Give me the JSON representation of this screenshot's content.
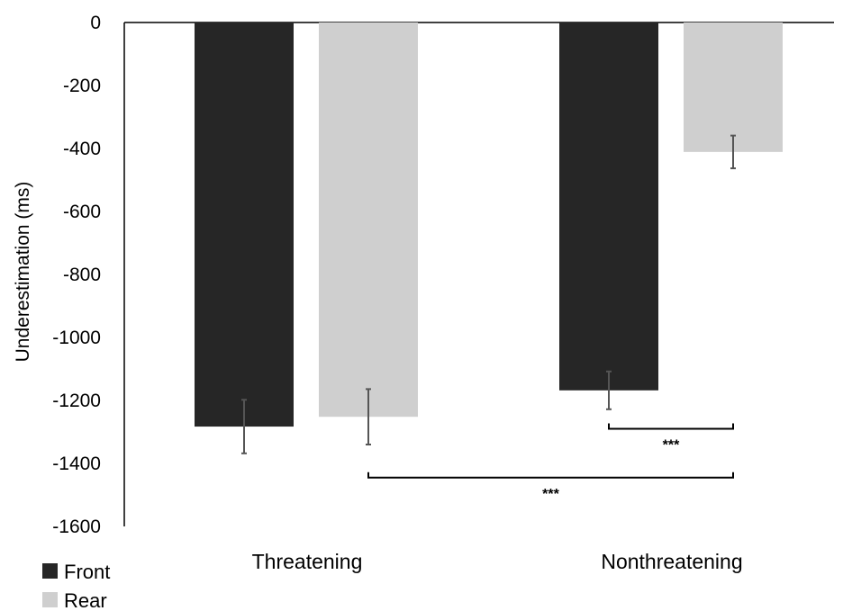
{
  "chart_data": {
    "type": "bar",
    "ylabel": "Underestimation (ms)",
    "ylim": [
      -1600,
      0
    ],
    "yticks": [
      0,
      -200,
      -400,
      -600,
      -800,
      -1000,
      -1200,
      -1400,
      -1600
    ],
    "categories": [
      "Threatening",
      "Nonthreatening"
    ],
    "series": [
      {
        "name": "Front",
        "color": "#262626",
        "values": [
          -1283,
          -1168
        ],
        "errors": [
          85,
          60
        ]
      },
      {
        "name": "Rear",
        "color": "#cfcfcf",
        "values": [
          -1252,
          -411
        ],
        "errors": [
          88,
          52
        ]
      }
    ],
    "legend_position": "bottom-left",
    "significance": [
      {
        "label": "***",
        "from": {
          "category": 1,
          "series": 0
        },
        "to": {
          "category": 1,
          "series": 1
        },
        "level": -1290
      },
      {
        "label": "***",
        "from": {
          "category": 0,
          "series": 1
        },
        "to": {
          "category": 1,
          "series": 1
        },
        "level": -1445
      }
    ]
  }
}
